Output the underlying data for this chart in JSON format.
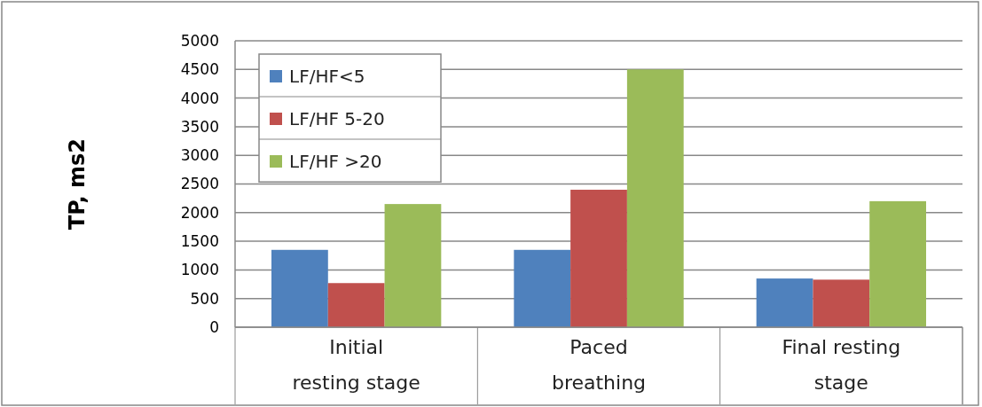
{
  "chart_data": {
    "type": "bar",
    "ylabel": "TP, ms2",
    "categories": [
      "Initial resting stage",
      "Paced breathing",
      "Final resting stage"
    ],
    "series": [
      {
        "name": "LF/HF<5",
        "color": "#4f81bd",
        "values": [
          1350,
          1350,
          850
        ]
      },
      {
        "name": "LF/HF 5-20",
        "color": "#c0504d",
        "values": [
          770,
          2400,
          830
        ]
      },
      {
        "name": "LF/HF >20",
        "color": "#9bbb59",
        "values": [
          2150,
          4500,
          2200
        ]
      }
    ],
    "ylim": [
      0,
      5000
    ],
    "yticks": [
      0,
      500,
      1000,
      1500,
      2000,
      2500,
      3000,
      3500,
      4000,
      4500,
      5000
    ],
    "grid": "y",
    "legend": "top left"
  }
}
